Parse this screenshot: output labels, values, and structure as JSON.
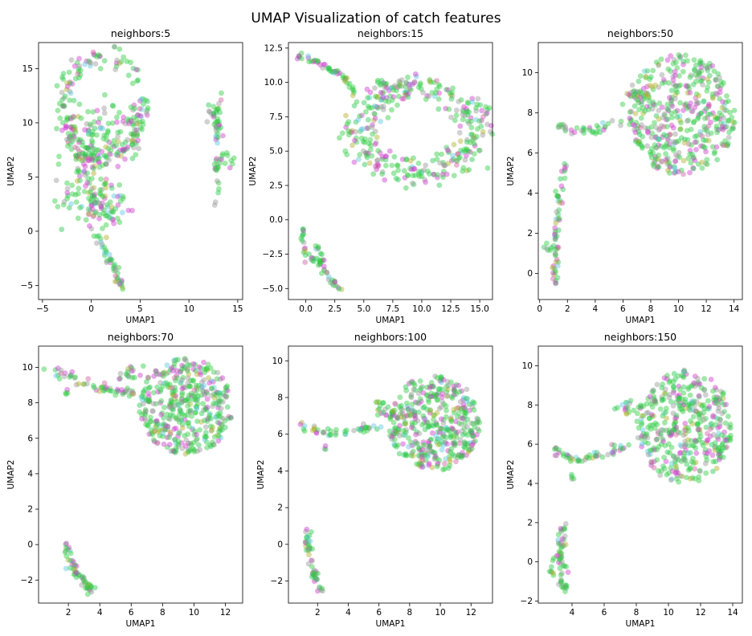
{
  "figure_title": "UMAP Visualization of catch features",
  "colors": {
    "palette": [
      "#2ecc40",
      "#28c850",
      "#cc3ccc",
      "#9a9a9a",
      "#b0b02a",
      "#5bc8e0",
      "#d060a0"
    ],
    "axes": "#000000",
    "background": "#ffffff"
  },
  "chart_data": [
    {
      "type": "scatter",
      "title": "neighbors:5",
      "xlabel": "UMAP1",
      "ylabel": "UMAP2",
      "xlim": [
        -5.4,
        15.5
      ],
      "ylim": [
        -6.3,
        17.4
      ],
      "xticks": [
        -5,
        0,
        5,
        10,
        15
      ],
      "yticks": [
        -5,
        0,
        5,
        10,
        15
      ],
      "clusters": [
        {
          "type": "ring",
          "cx": 1.3,
          "cy": 11.5,
          "rx": 4.2,
          "ry": 4.6,
          "thick": 0.7,
          "n": 170
        },
        {
          "type": "blob",
          "cx": -0.2,
          "cy": 8,
          "rx": 3.2,
          "ry": 4,
          "n": 120
        },
        {
          "type": "blob",
          "cx": 0.5,
          "cy": 3,
          "rx": 3.2,
          "ry": 2.8,
          "n": 110
        },
        {
          "type": "blob",
          "cx": 4,
          "cy": 9.5,
          "rx": 2,
          "ry": 2.4,
          "n": 40
        },
        {
          "type": "line",
          "pts": [
            [
              0,
              0.5
            ],
            [
              1.5,
              -2
            ],
            [
              2.5,
              -3.5
            ],
            [
              3,
              -5.2
            ]
          ],
          "width": 0.35,
          "n": 45
        },
        {
          "type": "blob",
          "cx": 12.6,
          "cy": 10.3,
          "rx": 0.9,
          "ry": 1.5,
          "n": 25
        },
        {
          "type": "line",
          "pts": [
            [
              13.4,
              12.8
            ],
            [
              12.9,
              9
            ],
            [
              12.8,
              5.5
            ],
            [
              12.8,
              2
            ]
          ],
          "width": 0.3,
          "n": 35
        },
        {
          "type": "blob",
          "cx": 14,
          "cy": 6.5,
          "rx": 0.7,
          "ry": 0.8,
          "n": 10
        }
      ]
    },
    {
      "type": "scatter",
      "title": "neighbors:15",
      "xlabel": "UMAP1",
      "ylabel": "UMAP2",
      "xlim": [
        -1.5,
        16.1
      ],
      "ylim": [
        -5.8,
        12.9
      ],
      "xticks": [
        0.0,
        2.5,
        5.0,
        7.5,
        10.0,
        12.5,
        15.0
      ],
      "yticks": [
        -5.0,
        -2.5,
        0.0,
        2.5,
        5.0,
        7.5,
        10.0,
        12.5
      ],
      "clusters": [
        {
          "type": "line",
          "pts": [
            [
              -0.7,
              12
            ],
            [
              1,
              11.5
            ],
            [
              3,
              10.5
            ],
            [
              4.5,
              9
            ]
          ],
          "width": 0.25,
          "n": 50
        },
        {
          "type": "ring",
          "cx": 9.8,
          "cy": 6.5,
          "rx": 5.2,
          "ry": 3.1,
          "thick": 1.1,
          "n": 330
        },
        {
          "type": "blob",
          "cx": 7,
          "cy": 9.5,
          "rx": 1.5,
          "ry": 0.8,
          "n": 30
        },
        {
          "type": "line",
          "pts": [
            [
              -0.2,
              -0.3
            ],
            [
              -0.3,
              -1.5
            ],
            [
              0,
              -2.8
            ]
          ],
          "width": 0.15,
          "n": 14
        },
        {
          "type": "line",
          "pts": [
            [
              0,
              -2.5
            ],
            [
              1,
              -3
            ],
            [
              2,
              -4.2
            ],
            [
              3,
              -5
            ]
          ],
          "width": 0.3,
          "n": 35
        },
        {
          "type": "line",
          "pts": [
            [
              0.8,
              -1.6
            ],
            [
              1.5,
              -3.2
            ]
          ],
          "width": 0.2,
          "n": 10
        }
      ]
    },
    {
      "type": "scatter",
      "title": "neighbors:50",
      "xlabel": "UMAP1",
      "ylabel": "UMAP2",
      "xlim": [
        -0.1,
        14.6
      ],
      "ylim": [
        -1.3,
        11.5
      ],
      "xticks": [
        0,
        2,
        4,
        6,
        8,
        10,
        12,
        14
      ],
      "yticks": [
        0,
        2,
        4,
        6,
        8,
        10
      ],
      "clusters": [
        {
          "type": "fan",
          "cx": 10.2,
          "cy": 7.9,
          "rx": 3.9,
          "ry": 3.0,
          "n": 430
        },
        {
          "type": "line",
          "pts": [
            [
              1.2,
              7.4
            ],
            [
              2.5,
              7
            ],
            [
              4,
              7.2
            ],
            [
              5.8,
              7.5
            ]
          ],
          "width": 0.22,
          "n": 35
        },
        {
          "type": "blob",
          "cx": 7,
          "cy": 9,
          "rx": 1,
          "ry": 0.5,
          "n": 20
        },
        {
          "type": "line",
          "pts": [
            [
              1.8,
              5.4
            ],
            [
              1.2,
              3
            ],
            [
              1.1,
              1
            ],
            [
              1.2,
              -0.6
            ]
          ],
          "width": 0.22,
          "n": 60
        },
        {
          "type": "blob",
          "cx": 0.7,
          "cy": 1.2,
          "rx": 0.3,
          "ry": 0.3,
          "n": 6
        }
      ]
    },
    {
      "type": "scatter",
      "title": "neighbors:70",
      "xlabel": "UMAP1",
      "ylabel": "UMAP2",
      "xlim": [
        0.1,
        13.1
      ],
      "ylim": [
        -3.3,
        11.2
      ],
      "xticks": [
        2,
        4,
        6,
        8,
        10,
        12
      ],
      "yticks": [
        -2,
        0,
        2,
        4,
        6,
        8,
        10
      ],
      "clusters": [
        {
          "type": "fan",
          "cx": 9.5,
          "cy": 7.8,
          "rx": 3.0,
          "ry": 2.7,
          "n": 420
        },
        {
          "type": "line",
          "pts": [
            [
              0.6,
              9.9
            ],
            [
              2.5,
              9.3
            ],
            [
              4.5,
              8.8
            ],
            [
              6.2,
              8.6
            ]
          ],
          "width": 0.3,
          "n": 55
        },
        {
          "type": "blob",
          "cx": 6,
          "cy": 9.7,
          "rx": 0.9,
          "ry": 0.4,
          "n": 18
        },
        {
          "type": "blob",
          "cx": 1.9,
          "cy": 8.6,
          "rx": 0.1,
          "ry": 0.2,
          "n": 4
        },
        {
          "type": "line",
          "pts": [
            [
              1.9,
              0.2
            ],
            [
              2.2,
              -1.2
            ],
            [
              3,
              -2
            ],
            [
              3.5,
              -2.6
            ]
          ],
          "width": 0.25,
          "n": 55
        }
      ]
    },
    {
      "type": "scatter",
      "title": "neighbors:100",
      "xlabel": "UMAP1",
      "ylabel": "UMAP2",
      "xlim": [
        0.1,
        13.4
      ],
      "ylim": [
        -3.2,
        10.8
      ],
      "xticks": [
        2,
        4,
        6,
        8,
        10,
        12
      ],
      "yticks": [
        -2,
        0,
        2,
        4,
        6,
        8,
        10
      ],
      "clusters": [
        {
          "type": "fan",
          "cx": 9.6,
          "cy": 6.6,
          "rx": 3.0,
          "ry": 2.6,
          "n": 430
        },
        {
          "type": "line",
          "pts": [
            [
              0.9,
              6.5
            ],
            [
              2.5,
              6.1
            ],
            [
              4.5,
              6.2
            ],
            [
              6,
              6.4
            ]
          ],
          "width": 0.25,
          "n": 45
        },
        {
          "type": "blob",
          "cx": 6.3,
          "cy": 7.4,
          "rx": 0.7,
          "ry": 0.5,
          "n": 18
        },
        {
          "type": "blob",
          "cx": 2.5,
          "cy": 5.3,
          "rx": 0.1,
          "ry": 0.15,
          "n": 3
        },
        {
          "type": "line",
          "pts": [
            [
              1.3,
              0.9
            ],
            [
              1.5,
              -0.6
            ],
            [
              1.9,
              -1.8
            ],
            [
              2.2,
              -2.5
            ]
          ],
          "width": 0.25,
          "n": 50
        }
      ]
    },
    {
      "type": "scatter",
      "title": "neighbors:150",
      "xlabel": "UMAP1",
      "ylabel": "UMAP2",
      "xlim": [
        1.9,
        14.6
      ],
      "ylim": [
        -2.1,
        11
      ],
      "xticks": [
        4,
        6,
        8,
        10,
        12,
        14
      ],
      "yticks": [
        -2,
        0,
        2,
        4,
        6,
        8,
        10
      ],
      "clusters": [
        {
          "type": "fan",
          "cx": 11,
          "cy": 6.9,
          "rx": 3.0,
          "ry": 2.9,
          "n": 420
        },
        {
          "type": "line",
          "pts": [
            [
              2.9,
              5.6
            ],
            [
              4.5,
              5.2
            ],
            [
              6,
              5.5
            ],
            [
              7.5,
              6
            ]
          ],
          "width": 0.25,
          "n": 50
        },
        {
          "type": "blob",
          "cx": 7.5,
          "cy": 7.8,
          "rx": 0.8,
          "ry": 0.5,
          "n": 18
        },
        {
          "type": "blob",
          "cx": 4,
          "cy": 4.3,
          "rx": 0.1,
          "ry": 0.2,
          "n": 4
        },
        {
          "type": "line",
          "pts": [
            [
              3.5,
              2
            ],
            [
              3.3,
              0.5
            ],
            [
              3.4,
              -1
            ],
            [
              3.5,
              -1.4
            ]
          ],
          "width": 0.3,
          "n": 55
        },
        {
          "type": "blob",
          "cx": 2.8,
          "cy": -0.2,
          "rx": 0.2,
          "ry": 0.5,
          "n": 8
        }
      ]
    }
  ]
}
